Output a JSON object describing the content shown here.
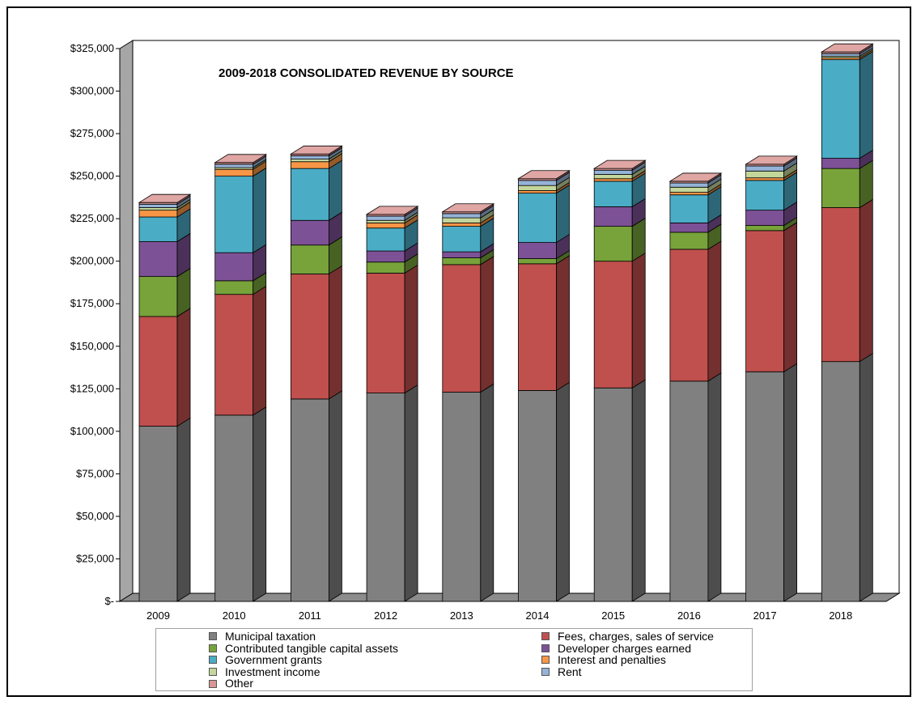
{
  "chart_data": {
    "type": "bar",
    "stacked": true,
    "style": "3d-column",
    "title": "2009-2018 CONSOLIDATED REVENUE BY SOURCE",
    "categories": [
      "2009",
      "2010",
      "2011",
      "2012",
      "2013",
      "2014",
      "2015",
      "2016",
      "2017",
      "2018"
    ],
    "y_ticks": [
      "$-",
      "$25,000",
      "$50,000",
      "$75,000",
      "$100,000",
      "$125,000",
      "$150,000",
      "$175,000",
      "$200,000",
      "$225,000",
      "$250,000",
      "$275,000",
      "$300,000",
      "$325,000"
    ],
    "ylim": [
      0,
      325000
    ],
    "grid": false,
    "legend_position": "bottom",
    "series": [
      {
        "name": "Municipal taxation",
        "color": "#808080",
        "values": [
          103000,
          109500,
          119000,
          122500,
          123000,
          124000,
          125500,
          129500,
          135000,
          141000
        ]
      },
      {
        "name": "Fees, charges, sales of service",
        "color": "#c0504d",
        "values": [
          64500,
          71000,
          73500,
          70500,
          75000,
          74500,
          74500,
          77500,
          83000,
          90500
        ]
      },
      {
        "name": "Contributed tangible capital assets",
        "color": "#77a33a",
        "values": [
          23500,
          8000,
          17000,
          6500,
          4000,
          3000,
          20500,
          10000,
          3000,
          23000
        ]
      },
      {
        "name": "Developer charges earned",
        "color": "#7d5195",
        "values": [
          20500,
          16500,
          14500,
          6500,
          3500,
          9500,
          11500,
          5500,
          9000,
          6000
        ]
      },
      {
        "name": "Government grants",
        "color": "#4bacc6",
        "values": [
          14500,
          45000,
          30500,
          13500,
          15000,
          29000,
          15000,
          16500,
          17500,
          58000
        ]
      },
      {
        "name": "Interest and penalties",
        "color": "#f79646",
        "values": [
          4000,
          4000,
          4000,
          3000,
          2000,
          1500,
          1500,
          1500,
          1500,
          1000
        ]
      },
      {
        "name": "Investment income",
        "color": "#c3d69b",
        "values": [
          1500,
          1000,
          1500,
          1500,
          3000,
          3000,
          2500,
          3000,
          4000,
          1000
        ]
      },
      {
        "name": "Rent",
        "color": "#95b3d7",
        "values": [
          2000,
          2000,
          2000,
          2500,
          2500,
          3000,
          2500,
          2500,
          3000,
          1500
        ]
      },
      {
        "name": "Other",
        "color": "#d99694",
        "values": [
          1000,
          1000,
          1000,
          1000,
          1000,
          1000,
          1000,
          1000,
          1000,
          1000
        ]
      }
    ]
  }
}
